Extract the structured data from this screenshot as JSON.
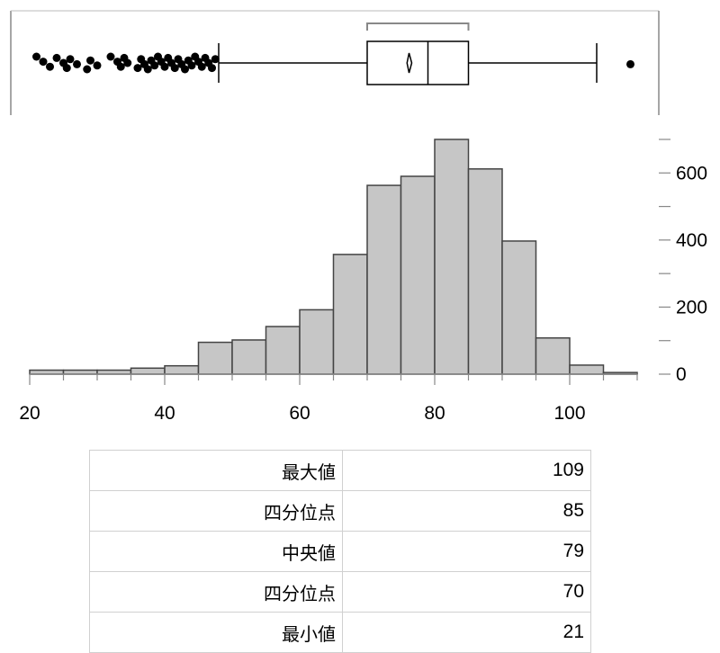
{
  "chart_data": [
    {
      "type": "box",
      "orientation": "horizontal",
      "min_whisker": 48,
      "q1": 70,
      "median": 79,
      "q3": 85,
      "max_whisker": 104,
      "mean": 76.2,
      "mean_ci": [
        75.9,
        76.6
      ],
      "shortest_half": [
        70,
        85
      ],
      "outliers": [
        21,
        22,
        23,
        24,
        25,
        25.5,
        26,
        27,
        28.5,
        29,
        30,
        32,
        33,
        33.5,
        34,
        34.5,
        36,
        36.5,
        37,
        37.5,
        38,
        38.5,
        39,
        39.5,
        40,
        40.5,
        41,
        41.5,
        42,
        42.5,
        43,
        43.5,
        44,
        44.5,
        45,
        45.5,
        46,
        46.5,
        47,
        47.5,
        109
      ]
    },
    {
      "type": "histogram",
      "bin_edges": [
        20,
        25,
        30,
        35,
        40,
        45,
        50,
        55,
        60,
        65,
        70,
        75,
        80,
        85,
        90,
        95,
        100,
        105,
        110
      ],
      "counts": [
        12,
        12,
        12,
        18,
        25,
        95,
        102,
        142,
        192,
        357,
        563,
        590,
        700,
        612,
        397,
        108,
        27,
        5
      ],
      "x_ticks": [
        20,
        40,
        60,
        80,
        100
      ],
      "y_ticks": [
        0,
        200,
        400,
        600
      ],
      "xlim": [
        20,
        110
      ],
      "ylim": [
        0,
        700
      ],
      "y_axis_side": "right"
    }
  ],
  "stats_table": [
    {
      "label": "最大値",
      "value": "109"
    },
    {
      "label": "四分位点",
      "value": "85"
    },
    {
      "label": "中央値",
      "value": "79"
    },
    {
      "label": "四分位点",
      "value": "70"
    },
    {
      "label": "最小値",
      "value": "21"
    }
  ]
}
